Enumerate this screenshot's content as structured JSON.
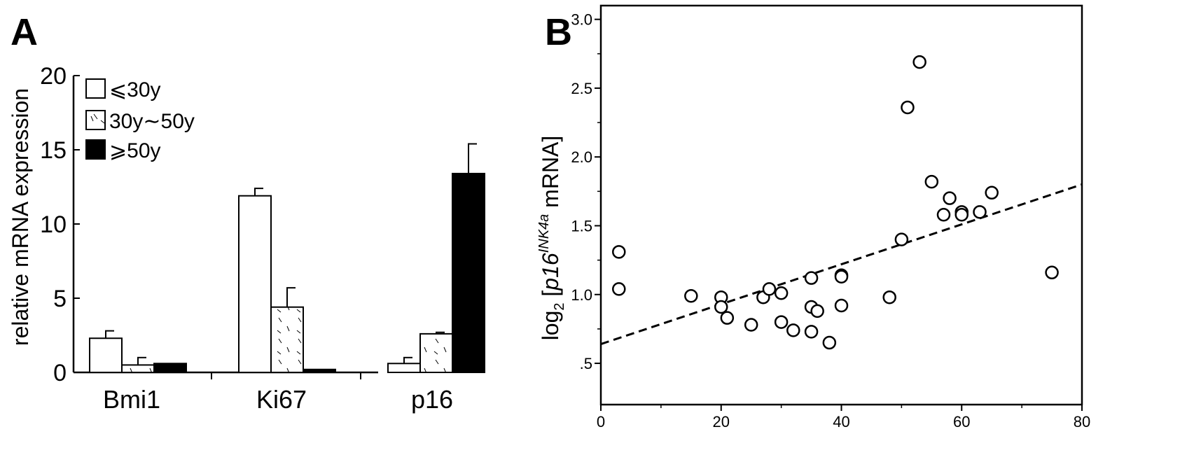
{
  "panels": {
    "a": {
      "letter": "A"
    },
    "b": {
      "letter": "B"
    }
  },
  "chart_data": [
    {
      "id": "A",
      "type": "bar",
      "title": "",
      "xlabel": "",
      "ylabel": "relative mRNA expression",
      "ylim": [
        0,
        20
      ],
      "yticks": [
        0,
        5,
        10,
        15,
        20
      ],
      "categories": [
        "Bmi1",
        "Ki67",
        "p16"
      ],
      "series": [
        {
          "name": "⩽30y",
          "fill": "white",
          "values": [
            2.3,
            11.9,
            0.6
          ],
          "errors": [
            0.5,
            0.5,
            0.4
          ]
        },
        {
          "name": "30y∼50y",
          "fill": "dashed",
          "values": [
            0.5,
            4.4,
            2.6
          ],
          "errors": [
            0.5,
            1.3,
            0.1
          ]
        },
        {
          "name": "⩾50y",
          "fill": "black",
          "values": [
            0.6,
            0.2,
            13.4
          ],
          "errors": [
            0.0,
            0.0,
            2.0
          ]
        }
      ],
      "legend": "top-left",
      "colors": {
        "ink": "#000000",
        "paper": "#ffffff"
      }
    },
    {
      "id": "B",
      "type": "scatter",
      "title": "",
      "xlabel": "",
      "ylabel_prefix": "log",
      "ylabel_sub": "2",
      "ylabel_open": " [",
      "ylabel_gene": "p16",
      "ylabel_super": "INK4a",
      "ylabel_suffix": "  mRNA]",
      "xlim": [
        0,
        80
      ],
      "ylim": [
        0.2,
        3.1
      ],
      "xticks": [
        "0",
        "20",
        "40",
        "60",
        "80"
      ],
      "yticks": [
        ".5",
        "1.0",
        "1.5",
        "2.0",
        "2.5",
        "3.0"
      ],
      "points": [
        [
          3,
          1.31
        ],
        [
          3,
          1.04
        ],
        [
          15,
          0.99
        ],
        [
          20,
          0.98
        ],
        [
          20,
          0.91
        ],
        [
          21,
          0.83
        ],
        [
          25,
          0.78
        ],
        [
          27,
          0.98
        ],
        [
          28,
          1.04
        ],
        [
          30,
          1.01
        ],
        [
          30,
          0.8
        ],
        [
          32,
          0.74
        ],
        [
          35,
          1.12
        ],
        [
          35,
          0.91
        ],
        [
          36,
          0.88
        ],
        [
          35,
          0.73
        ],
        [
          38,
          0.65
        ],
        [
          40,
          1.14
        ],
        [
          40,
          1.13
        ],
        [
          40,
          0.92
        ],
        [
          48,
          0.98
        ],
        [
          50,
          1.4
        ],
        [
          51,
          2.36
        ],
        [
          53,
          2.69
        ],
        [
          55,
          1.82
        ],
        [
          57,
          1.58
        ],
        [
          58,
          1.7
        ],
        [
          60,
          1.6
        ],
        [
          60,
          1.58
        ],
        [
          63,
          1.6
        ],
        [
          65,
          1.74
        ],
        [
          75,
          1.16
        ]
      ],
      "trendline": {
        "x": [
          0,
          80
        ],
        "y": [
          0.64,
          1.8
        ],
        "style": "dashed"
      }
    }
  ]
}
